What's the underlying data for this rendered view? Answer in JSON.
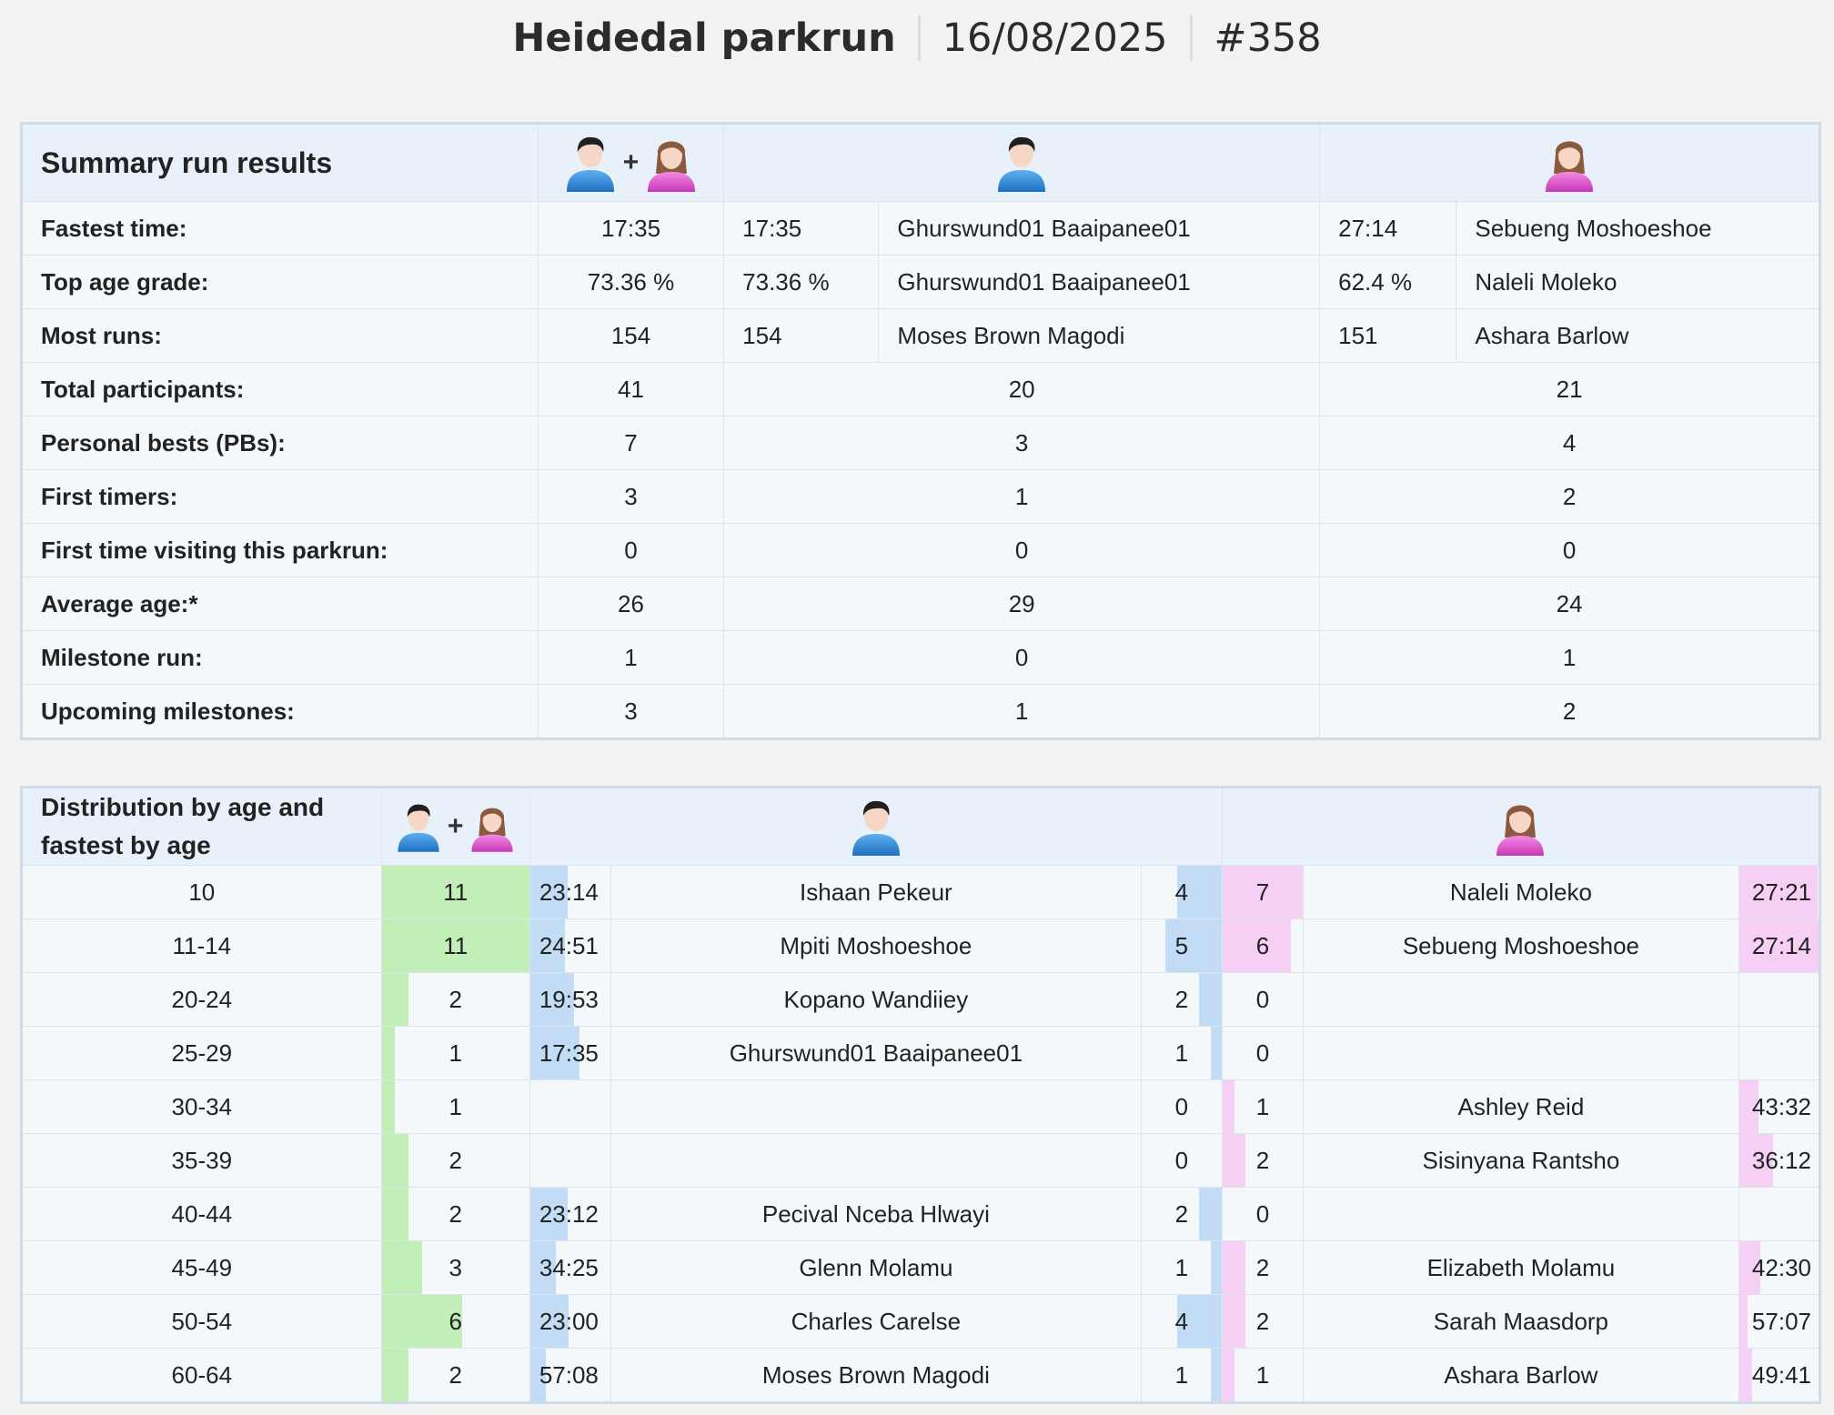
{
  "header": {
    "event": "Heidedal parkrun",
    "date": "16/08/2025",
    "run_number": "#358"
  },
  "summary": {
    "title": "Summary run results",
    "plus": "+",
    "rows": [
      {
        "label": "Fastest time:",
        "all": "17:35",
        "male_val": "17:35",
        "male_name": "Ghurswund01 Baaipanee01",
        "female_val": "27:14",
        "female_name": "Sebueng Moshoeshoe"
      },
      {
        "label": "Top age grade:",
        "all": "73.36 %",
        "male_val": "73.36 %",
        "male_name": "Ghurswund01 Baaipanee01",
        "female_val": "62.4 %",
        "female_name": "Naleli Moleko"
      },
      {
        "label": "Most runs:",
        "all": "154",
        "male_val": "154",
        "male_name": "Moses Brown Magodi",
        "female_val": "151",
        "female_name": "Ashara Barlow"
      },
      {
        "label": "Total participants:",
        "all": "41",
        "male": "20",
        "female": "21"
      },
      {
        "label": "Personal bests (PBs):",
        "all": "7",
        "male": "3",
        "female": "4"
      },
      {
        "label": "First timers:",
        "all": "3",
        "male": "1",
        "female": "2"
      },
      {
        "label": "First time visiting this parkrun:",
        "all": "0",
        "male": "0",
        "female": "0"
      },
      {
        "label": "Average age:*",
        "all": "26",
        "male": "29",
        "female": "24"
      },
      {
        "label": "Milestone run:",
        "all": "1",
        "male": "0",
        "female": "1"
      },
      {
        "label": "Upcoming milestones:",
        "all": "3",
        "male": "1",
        "female": "2"
      }
    ]
  },
  "distribution": {
    "title_line1": "Distribution by age and",
    "title_line2": "fastest by age",
    "plus": "+",
    "rows": [
      {
        "age": "10",
        "total": "11",
        "m_time": "23:14",
        "m_name": "Ishaan Pekeur",
        "m_count": "4",
        "f_count": "7",
        "f_name": "Naleli Moleko",
        "f_time": "27:21"
      },
      {
        "age": "11-14",
        "total": "11",
        "m_time": "24:51",
        "m_name": "Mpiti Moshoeshoe",
        "m_count": "5",
        "f_count": "6",
        "f_name": "Sebueng Moshoeshoe",
        "f_time": "27:14"
      },
      {
        "age": "20-24",
        "total": "2",
        "m_time": "19:53",
        "m_name": "Kopano Wandiiey",
        "m_count": "2",
        "f_count": "0",
        "f_name": "",
        "f_time": ""
      },
      {
        "age": "25-29",
        "total": "1",
        "m_time": "17:35",
        "m_name": "Ghurswund01 Baaipanee01",
        "m_count": "1",
        "f_count": "0",
        "f_name": "",
        "f_time": ""
      },
      {
        "age": "30-34",
        "total": "1",
        "m_time": "",
        "m_name": "",
        "m_count": "0",
        "f_count": "1",
        "f_name": "Ashley Reid",
        "f_time": "43:32"
      },
      {
        "age": "35-39",
        "total": "2",
        "m_time": "",
        "m_name": "",
        "m_count": "0",
        "f_count": "2",
        "f_name": "Sisinyana Rantsho",
        "f_time": "36:12"
      },
      {
        "age": "40-44",
        "total": "2",
        "m_time": "23:12",
        "m_name": "Pecival Nceba Hlwayi",
        "m_count": "2",
        "f_count": "0",
        "f_name": "",
        "f_time": ""
      },
      {
        "age": "45-49",
        "total": "3",
        "m_time": "34:25",
        "m_name": "Glenn Molamu",
        "m_count": "1",
        "f_count": "2",
        "f_name": "Elizabeth Molamu",
        "f_time": "42:30"
      },
      {
        "age": "50-54",
        "total": "6",
        "m_time": "23:00",
        "m_name": "Charles Carelse",
        "m_count": "4",
        "f_count": "2",
        "f_name": "Sarah Maasdorp",
        "f_time": "57:07"
      },
      {
        "age": "60-64",
        "total": "2",
        "m_time": "57:08",
        "m_name": "Moses Brown Magodi",
        "m_count": "1",
        "f_count": "1",
        "f_name": "Ashara Barlow",
        "f_time": "49:41"
      }
    ]
  },
  "icons": {
    "male": "male-runner-icon",
    "female": "female-runner-icon"
  },
  "colors": {
    "total_bar": "#c2efb8",
    "male_bar": "#c3dcf5",
    "female_bar": "#f6cff4",
    "header_bg": "#e8f1fa"
  }
}
